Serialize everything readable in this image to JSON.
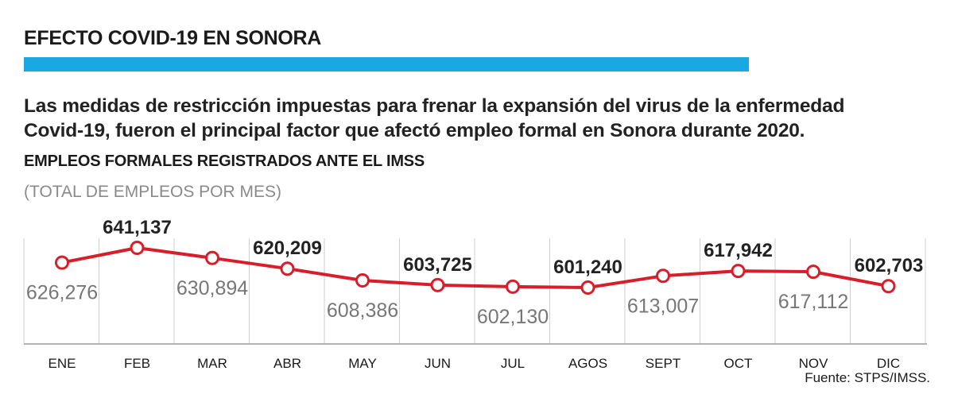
{
  "header": {
    "title": "EFECTO COVID-19 EN SONORA",
    "intro_line1": "Las medidas de restricción impuestas para frenar la expansión del virus de la enfermedad",
    "intro_line2": "Covid-19, fueron el principal factor que afectó empleo formal en Sonora durante 2020.",
    "subtitle": "EMPLEOS FORMALES REGISTRADOS ANTE EL IMSS",
    "unit": "(TOTAL DE EMPLEOS POR MES)"
  },
  "colors": {
    "accent_bar": "#1aa8e2",
    "line": "#d61f2b",
    "grid": "#cfcfcf",
    "label_dark": "#222222",
    "label_light": "#777777"
  },
  "chart_data": {
    "type": "line",
    "categories": [
      "ENE",
      "FEB",
      "MAR",
      "ABR",
      "MAY",
      "JUN",
      "JUL",
      "AGOS",
      "SEPT",
      "OCT",
      "NOV",
      "DIC"
    ],
    "values": [
      626276,
      641137,
      630894,
      620209,
      608386,
      603725,
      602130,
      601240,
      613007,
      617942,
      617112,
      602703
    ],
    "data_labels": [
      "626,276",
      "641,137",
      "630,894",
      "620,209",
      "608,386",
      "603,725",
      "602,130",
      "601,240",
      "613,007",
      "617,942",
      "617,112",
      "602,703"
    ],
    "label_style": [
      "light",
      "bold",
      "light",
      "bold",
      "light",
      "bold",
      "light",
      "bold",
      "light",
      "bold",
      "light",
      "bold"
    ],
    "grid": true,
    "legend": "none"
  },
  "footer": {
    "source": "Fuente: STPS/IMSS."
  }
}
